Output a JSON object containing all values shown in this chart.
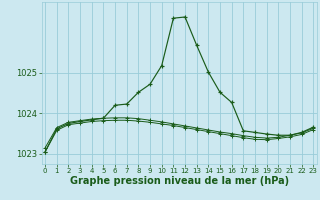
{
  "title": "Graphe pression niveau de la mer (hPa)",
  "background_color": "#cce8f0",
  "grid_color": "#99ccd9",
  "line_color": "#1a5c1a",
  "hours": [
    0,
    1,
    2,
    3,
    4,
    5,
    6,
    7,
    8,
    9,
    10,
    11,
    12,
    13,
    14,
    15,
    16,
    17,
    18,
    19,
    20,
    21,
    22,
    23
  ],
  "series1": [
    1023.05,
    1023.58,
    1023.72,
    1023.76,
    1023.8,
    1023.82,
    1023.83,
    1023.83,
    1023.81,
    1023.78,
    1023.74,
    1023.7,
    1023.65,
    1023.6,
    1023.55,
    1023.5,
    1023.45,
    1023.4,
    1023.36,
    1023.35,
    1023.38,
    1023.42,
    1023.48,
    1023.6
  ],
  "series2": [
    1023.15,
    1023.65,
    1023.78,
    1023.82,
    1023.86,
    1023.88,
    1023.89,
    1023.89,
    1023.87,
    1023.83,
    1023.79,
    1023.74,
    1023.69,
    1023.64,
    1023.59,
    1023.54,
    1023.5,
    1023.45,
    1023.41,
    1023.39,
    1023.41,
    1023.46,
    1023.52,
    1023.63
  ],
  "series3": [
    1023.05,
    1023.62,
    1023.75,
    1023.8,
    1023.84,
    1023.88,
    1024.2,
    1024.23,
    1024.52,
    1024.72,
    1025.18,
    1026.35,
    1026.38,
    1025.68,
    1025.02,
    1024.52,
    1024.27,
    1023.57,
    1023.53,
    1023.49,
    1023.46,
    1023.46,
    1023.53,
    1023.66
  ],
  "ylim": [
    1022.75,
    1026.75
  ],
  "yticks": [
    1023,
    1024,
    1025
  ],
  "title_fontsize": 7,
  "tick_fontsize": 6,
  "xtick_fontsize": 5
}
